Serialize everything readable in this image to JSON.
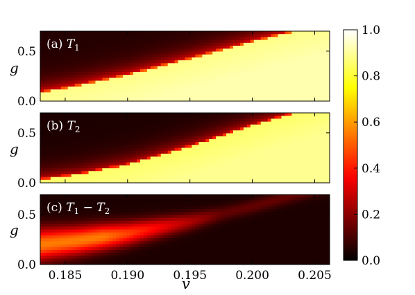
{
  "chart_data": {
    "type": "heatmap",
    "colormap": "hot",
    "xlabel": "v",
    "xlim": [
      0.183,
      0.2062
    ],
    "xticks": [
      "0.185",
      "0.190",
      "0.195",
      "0.200",
      "0.205"
    ],
    "xtick_values": [
      0.185,
      0.19,
      0.195,
      0.2,
      0.205
    ],
    "colorbar": {
      "range": [
        0.0,
        1.0
      ],
      "ticks": [
        "0.0",
        "0.2",
        "0.4",
        "0.6",
        "0.8",
        "1.0"
      ],
      "tick_values": [
        0.0,
        0.2,
        0.4,
        0.6,
        0.8,
        1.0
      ]
    },
    "panels": [
      {
        "id": "a",
        "label_prefix": "(a) ",
        "label_math": "T",
        "label_sub": "1",
        "ylabel": "g",
        "ylim": [
          0.0,
          0.7
        ],
        "yticks": [
          "0.0",
          "0.5"
        ],
        "ytick_values": [
          0.0,
          0.5
        ],
        "boundary": [
          [
            0.183,
            0.08
          ],
          [
            0.186,
            0.15
          ],
          [
            0.19,
            0.26
          ],
          [
            0.195,
            0.42
          ],
          [
            0.2,
            0.59
          ],
          [
            0.2035,
            0.7
          ]
        ],
        "value_above_near": 0.35,
        "value_above_far": 0.05,
        "value_below": 0.88
      },
      {
        "id": "b",
        "label_prefix": "(b) ",
        "label_math": "T",
        "label_sub": "2",
        "ylabel": "g",
        "ylim": [
          0.0,
          0.7
        ],
        "yticks": [
          "0.0",
          "0.5"
        ],
        "ytick_values": [
          0.0,
          0.5
        ],
        "boundary": [
          [
            0.183,
            0.03
          ],
          [
            0.186,
            0.08
          ],
          [
            0.19,
            0.18
          ],
          [
            0.195,
            0.36
          ],
          [
            0.2,
            0.57
          ],
          [
            0.2035,
            0.7
          ]
        ],
        "value_above_near": 0.3,
        "value_above_far": 0.04,
        "value_below": 0.85
      },
      {
        "id": "c",
        "label_prefix": "(c) ",
        "label_math": "T",
        "label_sub": "1",
        "label_minus": " − ",
        "label_math2": "T",
        "label_sub2": "2",
        "ylabel": "g",
        "ylim": [
          0.0,
          0.7
        ],
        "yticks": [
          "0.0",
          "0.5"
        ],
        "ytick_values": [
          0.0,
          0.5
        ],
        "boundary": [
          [
            0.183,
            0.2
          ],
          [
            0.186,
            0.24
          ],
          [
            0.19,
            0.31
          ],
          [
            0.195,
            0.43
          ],
          [
            0.2,
            0.58
          ],
          [
            0.2035,
            0.7
          ]
        ],
        "value_peak": 0.55,
        "value_floor": 0.04
      }
    ]
  }
}
